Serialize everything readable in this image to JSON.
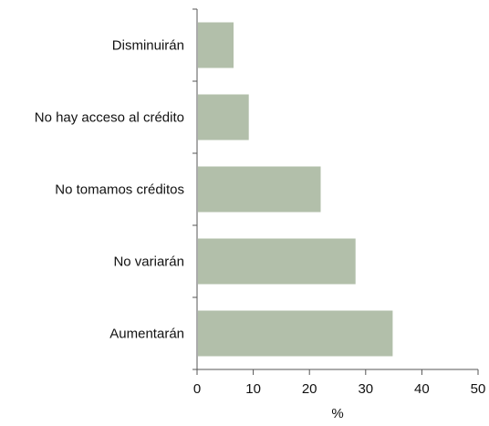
{
  "chart_data": {
    "type": "bar",
    "orientation": "horizontal",
    "title": "",
    "xlabel": "%",
    "ylabel": "",
    "categories": [
      "Disminuirán",
      "No hay acceso al crédito",
      "No tomamos créditos",
      "No variarán",
      "Aumentarán"
    ],
    "values": [
      6.5,
      9.2,
      22,
      28.2,
      34.8
    ],
    "xlim": [
      0,
      50
    ],
    "ticks": [
      "0",
      "10",
      "20",
      "30",
      "40",
      "50"
    ],
    "grid": false,
    "legend": "none",
    "bar_color": "#b2bfaa",
    "axis_color": "#555555"
  }
}
